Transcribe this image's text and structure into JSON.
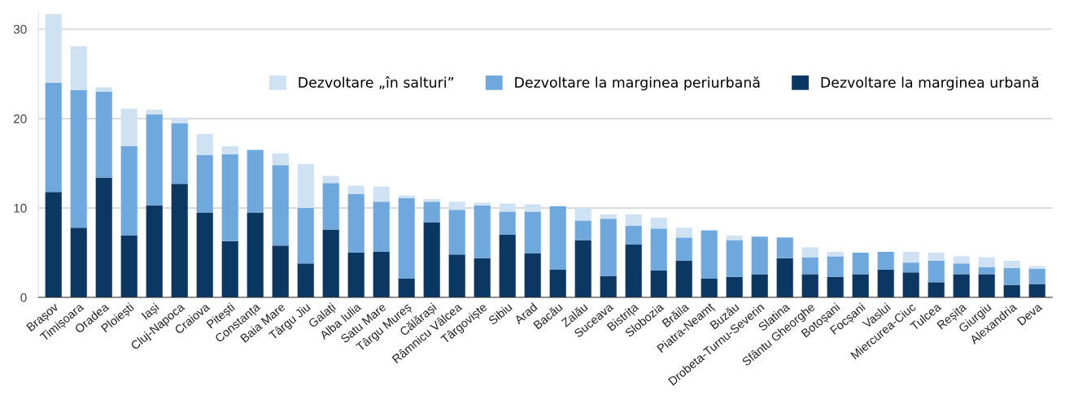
{
  "chart_data": {
    "type": "bar",
    "stacked": true,
    "categories": [
      "Brașov",
      "Timișoara",
      "Oradea",
      "Ploiești",
      "Iași",
      "Cluj-Napoca",
      "Craiova",
      "Pitești",
      "Constanța",
      "Baia Mare",
      "Târgu Jiu",
      "Galați",
      "Alba Iulia",
      "Satu Mare",
      "Târgu Mureș",
      "Călărași",
      "Râmnicu Vâlcea",
      "Târgoviște",
      "Sibiu",
      "Arad",
      "Bacău",
      "Zalău",
      "Suceava",
      "Bistrița",
      "Slobozia",
      "Brăila",
      "Piatra-Neamț",
      "Buzău",
      "Drobeta-Turnu-Severin",
      "Slatina",
      "Sfântu Gheorghe",
      "Botoșani",
      "Focșani",
      "Vaslui",
      "Miercurea-Ciuc",
      "Tulcea",
      "Reșița",
      "Giurgiu",
      "Alexandria",
      "Deva"
    ],
    "series": [
      {
        "name": "Dezvoltare la marginea urbană",
        "color": "#0b3763",
        "values": [
          11.8,
          7.8,
          13.4,
          6.9,
          10.3,
          12.7,
          9.5,
          6.3,
          9.5,
          5.8,
          3.8,
          7.6,
          5.0,
          5.1,
          2.1,
          8.4,
          4.8,
          4.4,
          7.0,
          4.9,
          3.1,
          6.4,
          2.4,
          5.9,
          3.0,
          4.1,
          2.1,
          2.3,
          2.6,
          4.4,
          2.6,
          2.3,
          2.6,
          3.1,
          2.8,
          1.7,
          2.6,
          2.6,
          1.4,
          1.5
        ]
      },
      {
        "name": "Dezvoltare la marginea periurbană",
        "color": "#6fa8dc",
        "values": [
          12.2,
          15.4,
          9.6,
          10.0,
          10.2,
          6.8,
          6.4,
          9.7,
          7.0,
          9.0,
          6.2,
          5.2,
          6.6,
          5.6,
          9.0,
          2.3,
          5.0,
          5.9,
          2.6,
          4.7,
          7.1,
          2.2,
          6.4,
          2.1,
          4.7,
          2.6,
          5.4,
          4.1,
          4.2,
          2.3,
          1.9,
          2.3,
          2.4,
          2.0,
          1.1,
          2.4,
          1.2,
          0.8,
          1.9,
          1.7
        ]
      },
      {
        "name": "Dezvoltare „în salturi”",
        "color": "#cfe2f3",
        "values": [
          7.7,
          4.9,
          0.5,
          4.2,
          0.5,
          0.6,
          2.4,
          0.9,
          0,
          1.3,
          4.9,
          0.8,
          0.9,
          1.7,
          0.3,
          0.3,
          0.9,
          0.3,
          0.9,
          0.8,
          0,
          1.4,
          0.5,
          1.3,
          1.2,
          1.1,
          0,
          0.5,
          0,
          0,
          1.1,
          0.5,
          0,
          0,
          1.2,
          0.9,
          0.8,
          1.1,
          0.8,
          0.3
        ]
      }
    ],
    "ylim": [
      0,
      32
    ],
    "yticks": [
      0,
      10,
      20,
      30
    ],
    "grid": "y",
    "legend": "top right"
  }
}
